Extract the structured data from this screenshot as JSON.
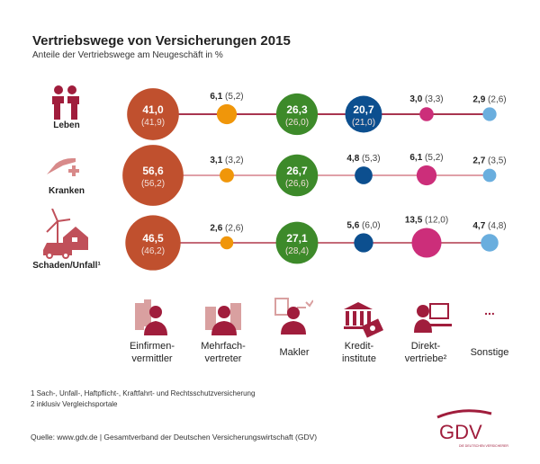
{
  "title": "Vertriebswege von Versicherungen 2015",
  "subtitle": "Anteile der Vertriebswege am Neugeschäft in %",
  "chart_data": {
    "type": "bubble-matrix",
    "title": "Vertriebswege von Versicherungen 2015",
    "subtitle": "Anteile der Vertriebswege am Neugeschäft in %",
    "categories": [
      "Einfirmen-vermittler",
      "Mehrfach-vertreter",
      "Makler",
      "Kredit-institute",
      "Direkt-vertriebe²",
      "Sonstige"
    ],
    "colors": [
      "#c0502e",
      "#f0960a",
      "#3d8a2a",
      "#0c4f8f",
      "#cc2e7a",
      "#6aaede"
    ],
    "rows": [
      {
        "name": "Leben",
        "values": [
          41.0,
          6.1,
          26.3,
          20.7,
          3.0,
          2.9
        ],
        "previous": [
          41.9,
          5.2,
          26.0,
          21.0,
          3.3,
          2.6
        ],
        "labels": [
          "41,0",
          "6,1",
          "26,3",
          "20,7",
          "3,0",
          "2,9"
        ],
        "prev_labels": [
          "(41,9)",
          "(5,2)",
          "(26,0)",
          "(21,0)",
          "(3,3)",
          "(2,6)"
        ]
      },
      {
        "name": "Kranken",
        "values": [
          56.6,
          3.1,
          26.7,
          4.8,
          6.1,
          2.7
        ],
        "previous": [
          56.2,
          3.2,
          26.6,
          5.3,
          5.2,
          3.5
        ],
        "labels": [
          "56,6",
          "3,1",
          "26,7",
          "4,8",
          "6,1",
          "2,7"
        ],
        "prev_labels": [
          "(56,2)",
          "(3,2)",
          "(26,6)",
          "(5,3)",
          "(5,2)",
          "(3,5)"
        ]
      },
      {
        "name": "Schaden/Unfall¹",
        "values": [
          46.5,
          2.6,
          27.1,
          5.6,
          13.5,
          4.7
        ],
        "previous": [
          46.2,
          2.6,
          28.4,
          6.0,
          12.0,
          4.8
        ],
        "labels": [
          "46,5",
          "2,6",
          "27,1",
          "5,6",
          "13,5",
          "4,7"
        ],
        "prev_labels": [
          "(46,2)",
          "(2,6)",
          "(28,4)",
          "(6,0)",
          "(12,0)",
          "(4,8)"
        ]
      }
    ]
  },
  "channels": [
    {
      "l1": "Einfirmen-",
      "l2": "vermittler",
      "icon": "businesswoman-icon"
    },
    {
      "l1": "Mehrfach-",
      "l2": "vertreter",
      "icon": "businessman-icon"
    },
    {
      "l1": "",
      "l2": "Makler",
      "icon": "broker-icon"
    },
    {
      "l1": "Kredit-",
      "l2": "institute",
      "icon": "bank-icon"
    },
    {
      "l1": "Direkt-",
      "l2": "vertriebe²",
      "icon": "call-center-icon"
    },
    {
      "l1": "...",
      "l2": "Sonstige",
      "icon": "ellipsis-icon"
    }
  ],
  "rows": [
    "Leben",
    "Kranken",
    "Schaden/Unfall¹"
  ],
  "footnotes": [
    "1   Sach-, Unfall-, Haftpflicht-, Kraftfahrt- und Rechtsschutzversicherung",
    "2   inklusiv Vergleichsportale"
  ],
  "source": "Quelle: www.gdv.de | Gesamtverband der Deutschen Versicherungswirtschaft (GDV)",
  "logo": {
    "text": "GDV",
    "tagline": "DIE DEUTSCHEN VERSICHERER",
    "color": "#a01d3c"
  }
}
